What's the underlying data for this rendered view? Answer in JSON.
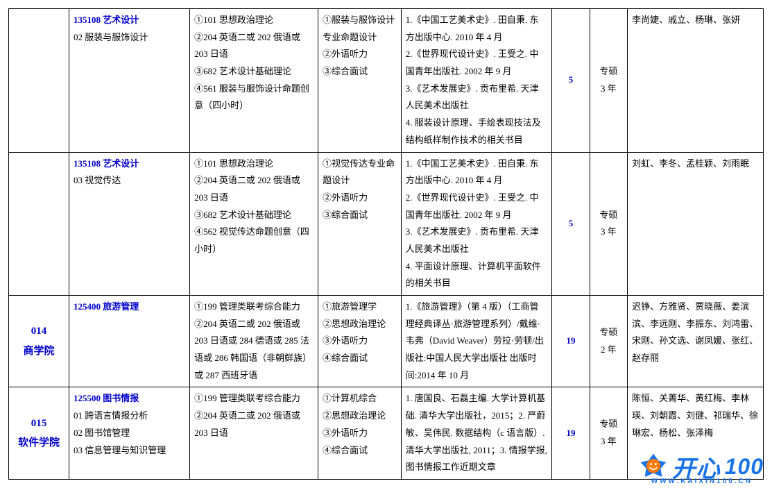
{
  "colors": {
    "link": "#0000cd",
    "border": "#000000",
    "text": "#000000",
    "watermark": "#1a73e8",
    "watermark_accent": "#ff7a00"
  },
  "rows": [
    {
      "dept": "",
      "major_code": "135108 艺术设计",
      "major_lines": [
        "02 服装与服饰设计"
      ],
      "exam": "①101 思想政治理论\n②204 英语二或 202 俄语或 203 日语\n③682 艺术设计基础理论\n④561 服装与服饰设计命题创意（四小时）",
      "retest": "①服装与服饰设计专业命题设计\n②外语听力\n③综合面试",
      "books": "1.《中国工艺美术史》. 田自秉. 东方出版中心. 2010 年 4 月\n2.《世界现代设计史》. 王受之. 中国青年出版社. 2002 年 9 月\n3.《艺术发展史》. 贡布里希. 天津人民美术出版社\n4. 服装设计原理、手绘表现技法及结构纸样制作技术的相关书目",
      "num": "5",
      "type": "专硕\n3 年",
      "teachers": "李尚婕、戚立、杨琳、张妍"
    },
    {
      "dept": "",
      "major_code": "135108 艺术设计",
      "major_lines": [
        "03 视觉传达"
      ],
      "exam": "①101 思想政治理论\n②204 英语二或 202 俄语或 203 日语\n③682 艺术设计基础理论\n④562 视觉传达命题创意（四小时）",
      "retest": "①视觉传达专业命题设计\n②外语听力\n③综合面试",
      "books": "1.《中国工艺美术史》. 田自秉. 东方出版中心. 2010 年 4 月\n2.《世界现代设计史》. 王受之. 中国青年出版社. 2002 年 9 月\n3.《艺术发展史》. 贡布里希. 天津人民美术出版社\n4. 平面设计原理、计算机平面软件的相关书目",
      "num": "5",
      "type": "专硕\n3 年",
      "teachers": "刘虹、李冬、孟桂颖、刘雨眠"
    },
    {
      "dept": "014\n商学院",
      "major_code": "125400 旅游管理",
      "major_lines": [],
      "exam": "①199 管理类联考综合能力\n②204 英语二或 202 俄语或 203 日语或 284 德语或 285 法语或 286 韩国语（非朝鲜族）或 287 西班牙语",
      "retest": "①旅游管理学\n②思想政治理论\n③外语听力\n④综合面试",
      "books": "1.《旅游管理》（第 4 版）（工商管理经典译丛·旅游管理系列）/戴维·韦弗（David Weaver）劳拉·劳顿/出版社:中国人民大学出版社 出版时间:2014 年 10 月",
      "num": "19",
      "type": "专硕\n2 年",
      "teachers": "迟铮、方雅贤、贾晓薇、姜滨滨、李远刚、李振东、刘鸿雷、宋刚、孙文选、谢凤媛、张红、赵存丽"
    },
    {
      "dept": "015\n软件学院",
      "major_code": "125500 图书情报",
      "major_lines": [
        "01 跨语言情报分析",
        "02 图书馆管理",
        "03 信息管理与知识管理"
      ],
      "exam": "①199 管理类联考综合能力\n②204 英语二或 202 俄语或 203 日语",
      "retest": "①计算机综合\n②思想政治理论\n③外语听力\n④综合面试",
      "books": "1. 唐国良、石磊主编. 大学计算机基础. 清华大学出版社，2015；2. 严蔚敏、吴伟民. 数据结构（c 语言版）. 清华大学出版社, 2011；3. 情报学报, 图书情报工作近期文章",
      "num": "19",
      "type": "专硕\n3 年",
      "teachers": "陈恒、关菁华、黄红梅、李林瑛、刘朝霞、刘健、祁瑞华、徐琳宏、杨松、张泽梅"
    }
  ],
  "watermark": {
    "brand_cn": "开心",
    "brand_num": "100",
    "url": "WWW.KAIXIN100.CN"
  }
}
